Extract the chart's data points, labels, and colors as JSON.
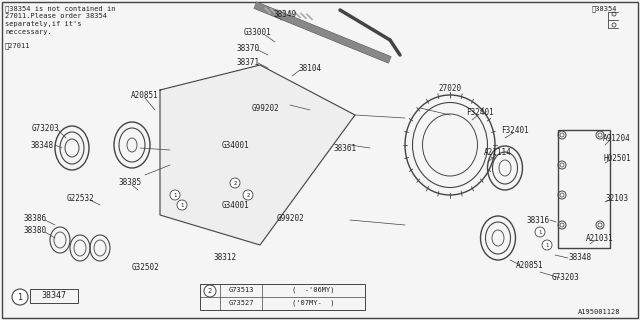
{
  "bg_color": "#f5f5f5",
  "border_color": "#555555",
  "line_color": "#444444",
  "text_color": "#222222",
  "title_note": "※38354 is not contained in\n27011.Please order 38354\nseparately,if it's\nneccessary.",
  "watermark": "※27011",
  "part_id": "A195001128",
  "corner_label": "※38354",
  "legend_items": [
    {
      "num": "1",
      "label": "38347"
    },
    {
      "num": "2",
      "code1": "G73513",
      "range1": "(  -'06MY)",
      "code2": "G73527",
      "range2": "('07MY-  )"
    }
  ],
  "parts": [
    "38349",
    "G33001",
    "38370",
    "38371",
    "38104",
    "G99202",
    "G34001",
    "38361",
    "G34001",
    "G99202",
    "38312",
    "G32502",
    "38385",
    "G22532",
    "38386",
    "38380",
    "38348",
    "G73203",
    "A20851",
    "27020",
    "F32401",
    "F32401",
    "A21114",
    "A91204",
    "H02501",
    "32103",
    "38316",
    "A21031",
    "A20851",
    "38348",
    "G73203"
  ],
  "figsize": [
    6.4,
    3.2
  ],
  "dpi": 100
}
